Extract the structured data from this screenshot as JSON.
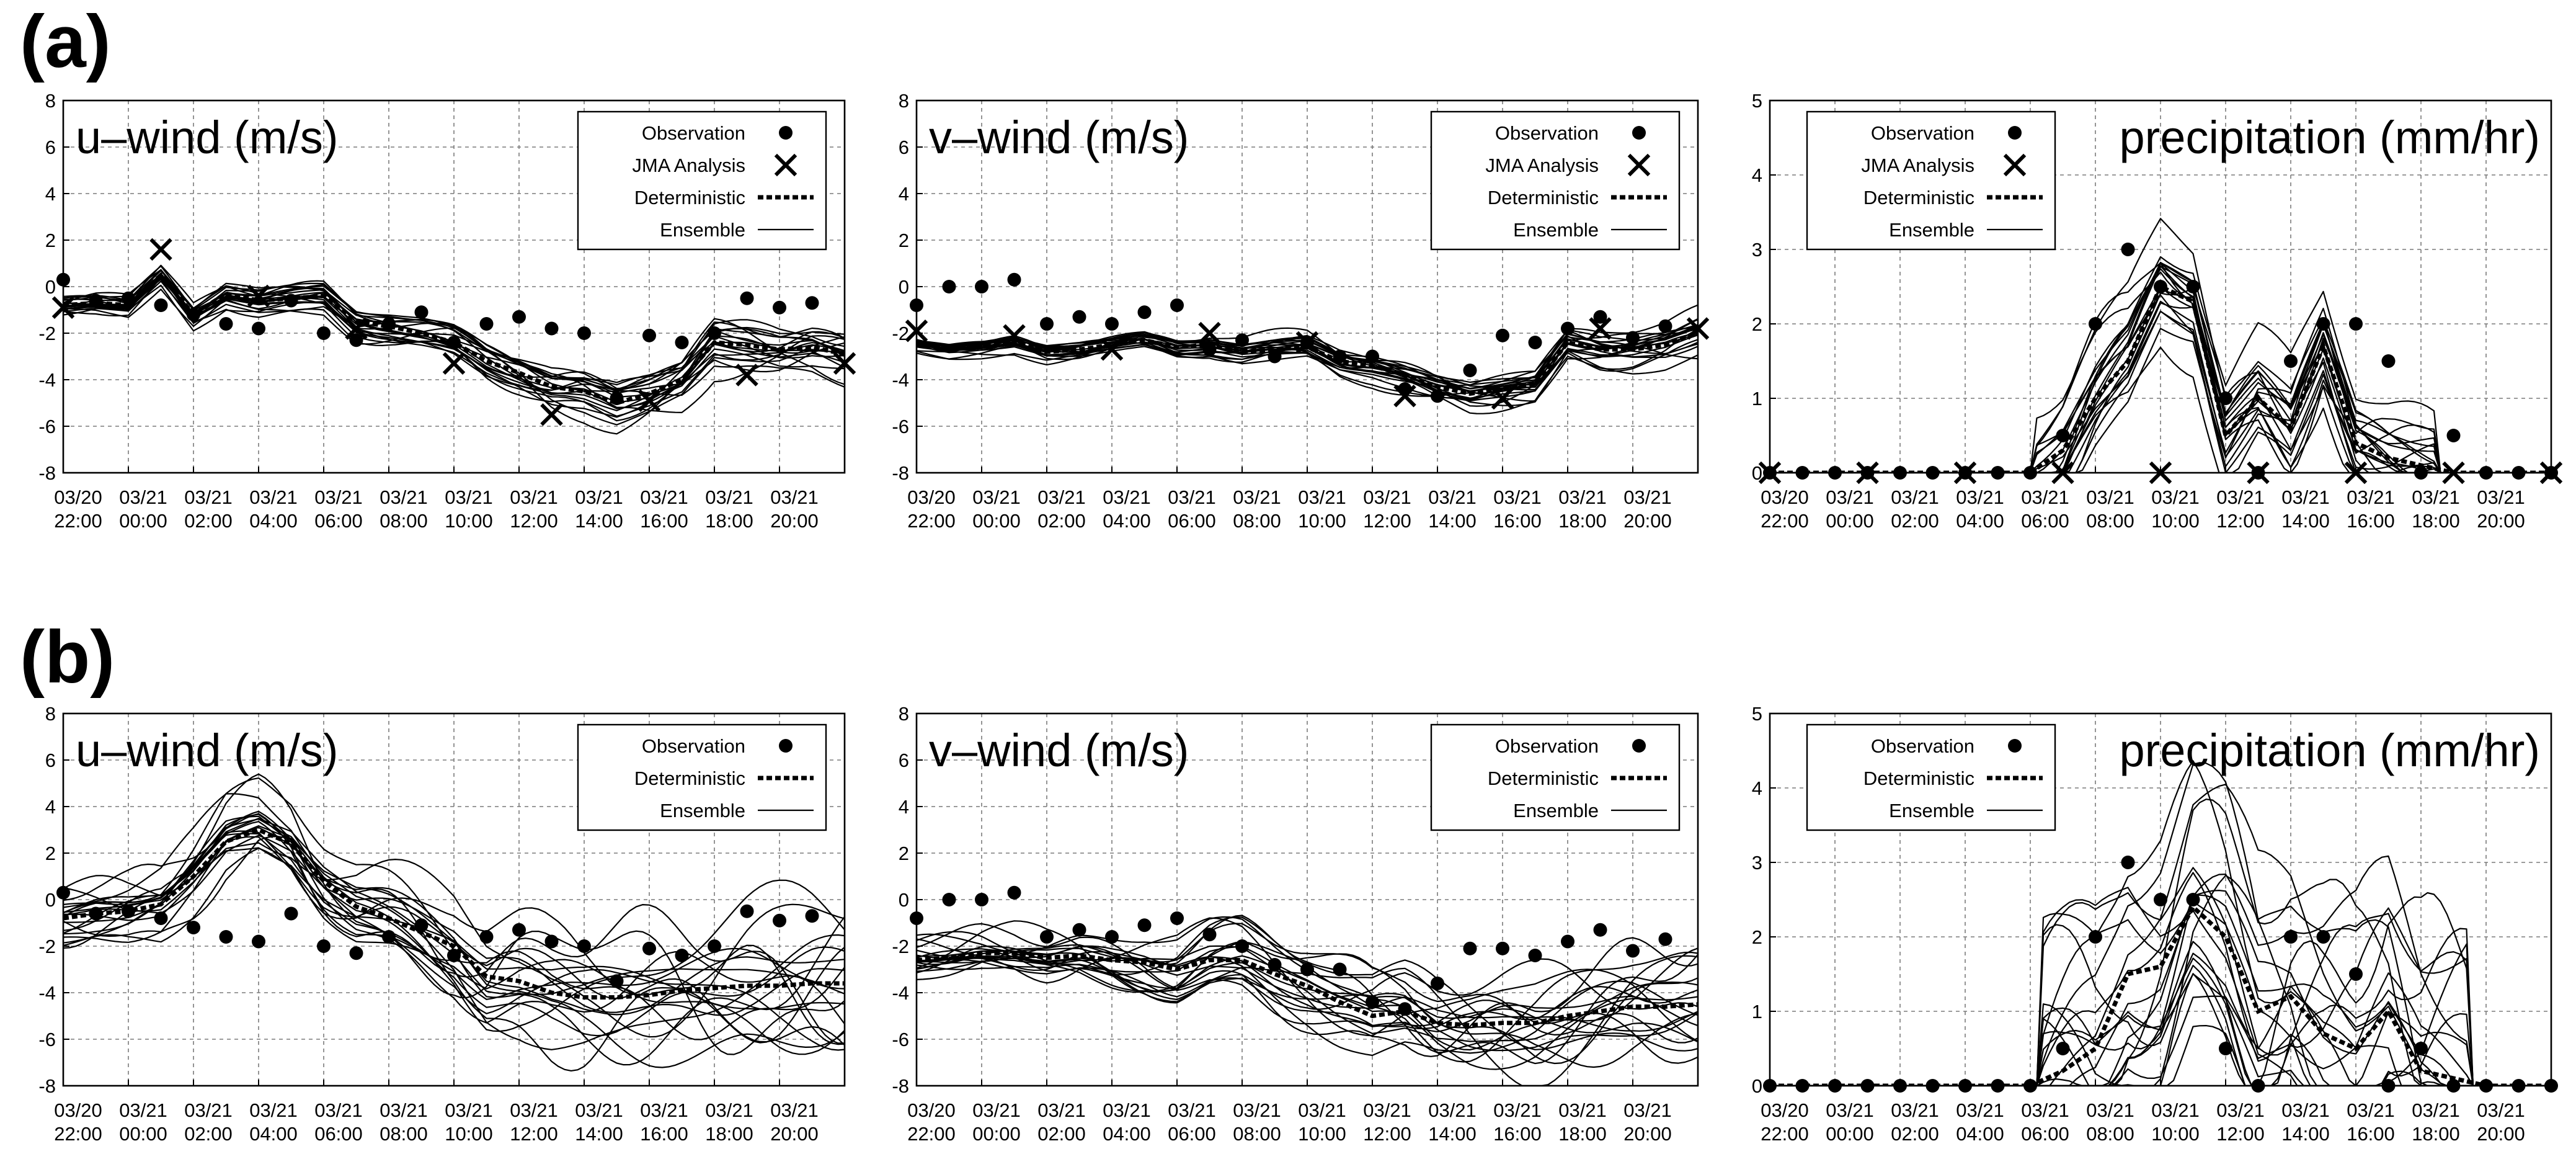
{
  "figure": {
    "rows": [
      {
        "label": "(a)"
      },
      {
        "label": "(b)"
      }
    ]
  },
  "legend": {
    "observation": "Observation",
    "jma": "JMA Analysis",
    "deterministic": "Deterministic",
    "ensemble": "Ensemble"
  },
  "chart_data": [
    {
      "id": "a-u",
      "type": "line",
      "row": "(a)",
      "title": "u–wind (m/s)",
      "ylim": [
        -8,
        8
      ],
      "yticks": [
        -8,
        -6,
        -4,
        -2,
        0,
        2,
        4,
        6,
        8
      ],
      "xlim": [
        -2,
        22
      ],
      "grid": true,
      "has_jma": true,
      "ensemble_spread": 0.6,
      "xtick_labels": [
        [
          "03/20",
          "22:00"
        ],
        [
          "03/21",
          "00:00"
        ],
        [
          "03/21",
          "02:00"
        ],
        [
          "03/21",
          "04:00"
        ],
        [
          "03/21",
          "06:00"
        ],
        [
          "03/21",
          "08:00"
        ],
        [
          "03/21",
          "10:00"
        ],
        [
          "03/21",
          "12:00"
        ],
        [
          "03/21",
          "14:00"
        ],
        [
          "03/21",
          "16:00"
        ],
        [
          "03/21",
          "18:00"
        ],
        [
          "03/21",
          "20:00"
        ]
      ],
      "observation": {
        "x": [
          -2,
          -1,
          0,
          1,
          2,
          3,
          4,
          5,
          6,
          7,
          8,
          9,
          10,
          11,
          12,
          13,
          14,
          15,
          16,
          17,
          18,
          19,
          20,
          21
        ],
        "y": [
          0.3,
          -0.6,
          -0.5,
          -0.8,
          -1.2,
          -1.6,
          -1.8,
          -0.6,
          -2.0,
          -2.3,
          -1.6,
          -1.1,
          -2.4,
          -1.6,
          -1.3,
          -1.8,
          -2.0,
          -4.8,
          -2.1,
          -2.4,
          -2.0,
          -0.5,
          -0.9,
          -0.7
        ]
      },
      "jma": {
        "x": [
          -2,
          1,
          4,
          7,
          10,
          13,
          16,
          19,
          22
        ],
        "y": [
          -0.9,
          1.6,
          -0.4,
          -1.8,
          -3.3,
          -5.5,
          -4.9,
          -3.8,
          -3.3
        ]
      },
      "deterministic": {
        "x": [
          -2,
          -1,
          0,
          1,
          2,
          3,
          4,
          5,
          6,
          7,
          8,
          9,
          10,
          11,
          12,
          13,
          14,
          15,
          16,
          17,
          18,
          19,
          20,
          21,
          22
        ],
        "y": [
          -0.8,
          -0.7,
          -0.8,
          0.5,
          -1.2,
          -0.3,
          -0.6,
          -0.5,
          -0.4,
          -1.5,
          -1.7,
          -2.0,
          -2.4,
          -3.2,
          -3.7,
          -4.3,
          -4.5,
          -5.0,
          -4.6,
          -4.0,
          -2.4,
          -2.5,
          -2.7,
          -2.6,
          -2.9
        ]
      }
    },
    {
      "id": "a-v",
      "type": "line",
      "row": "(a)",
      "title": "v–wind (m/s)",
      "ylim": [
        -8,
        8
      ],
      "yticks": [
        -8,
        -6,
        -4,
        -2,
        0,
        2,
        4,
        6,
        8
      ],
      "xlim": [
        -2,
        22
      ],
      "grid": true,
      "has_jma": true,
      "ensemble_spread": 0.4,
      "xtick_labels": [
        [
          "03/20",
          "22:00"
        ],
        [
          "03/21",
          "00:00"
        ],
        [
          "03/21",
          "02:00"
        ],
        [
          "03/21",
          "04:00"
        ],
        [
          "03/21",
          "06:00"
        ],
        [
          "03/21",
          "08:00"
        ],
        [
          "03/21",
          "10:00"
        ],
        [
          "03/21",
          "12:00"
        ],
        [
          "03/21",
          "14:00"
        ],
        [
          "03/21",
          "16:00"
        ],
        [
          "03/21",
          "18:00"
        ],
        [
          "03/21",
          "20:00"
        ]
      ],
      "observation": {
        "x": [
          -2,
          -1,
          0,
          1,
          2,
          3,
          4,
          5,
          6,
          7,
          8,
          9,
          10,
          11,
          12,
          13,
          14,
          15,
          16,
          17,
          18,
          19,
          20,
          21
        ],
        "y": [
          -0.8,
          0.0,
          0.0,
          0.3,
          -1.6,
          -1.3,
          -1.6,
          -1.1,
          -0.8,
          -2.7,
          -2.3,
          -3.0,
          -2.4,
          -3.0,
          -3.0,
          -4.4,
          -4.7,
          -3.6,
          -2.1,
          -2.4,
          -1.8,
          -1.3,
          -2.2,
          -1.7
        ]
      },
      "jma": {
        "x": [
          -2,
          1,
          4,
          7,
          10,
          13,
          16,
          19,
          22
        ],
        "y": [
          -1.9,
          -2.1,
          -2.7,
          -2.0,
          -2.4,
          -4.7,
          -4.8,
          -1.8,
          -1.8
        ]
      },
      "deterministic": {
        "x": [
          -2,
          -1,
          0,
          1,
          2,
          3,
          4,
          5,
          6,
          7,
          8,
          9,
          10,
          11,
          12,
          13,
          14,
          15,
          16,
          17,
          18,
          19,
          20,
          21,
          22
        ],
        "y": [
          -2.5,
          -2.7,
          -2.6,
          -2.4,
          -2.8,
          -2.7,
          -2.5,
          -2.3,
          -2.6,
          -2.5,
          -2.8,
          -2.7,
          -2.6,
          -3.2,
          -3.4,
          -3.8,
          -4.3,
          -4.6,
          -4.4,
          -4.2,
          -2.4,
          -2.7,
          -2.7,
          -2.5,
          -2.0
        ]
      }
    },
    {
      "id": "a-p",
      "type": "line",
      "row": "(a)",
      "title": "precipitation (mm/hr)",
      "ylim": [
        0,
        5
      ],
      "yticks": [
        0,
        1,
        2,
        3,
        4,
        5
      ],
      "xlim": [
        -2,
        22
      ],
      "grid": true,
      "has_jma": true,
      "ensemble_spread": 0.5,
      "xtick_labels": [
        [
          "03/20",
          "22:00"
        ],
        [
          "03/21",
          "00:00"
        ],
        [
          "03/21",
          "02:00"
        ],
        [
          "03/21",
          "04:00"
        ],
        [
          "03/21",
          "06:00"
        ],
        [
          "03/21",
          "08:00"
        ],
        [
          "03/21",
          "10:00"
        ],
        [
          "03/21",
          "12:00"
        ],
        [
          "03/21",
          "14:00"
        ],
        [
          "03/21",
          "16:00"
        ],
        [
          "03/21",
          "18:00"
        ],
        [
          "03/21",
          "20:00"
        ]
      ],
      "observation": {
        "x": [
          -2,
          -1,
          0,
          1,
          2,
          3,
          4,
          5,
          6,
          7,
          8,
          9,
          10,
          11,
          12,
          13,
          14,
          15,
          16,
          17,
          18,
          19,
          20,
          21,
          22
        ],
        "y": [
          0,
          0,
          0,
          0,
          0,
          0,
          0,
          0,
          0,
          0.5,
          2.0,
          3.0,
          2.5,
          2.5,
          1.0,
          0.0,
          1.5,
          2.0,
          2.0,
          1.5,
          0,
          0.5,
          0,
          0,
          0
        ]
      },
      "jma": {
        "x": [
          -2,
          1,
          4,
          7,
          10,
          13,
          16,
          19,
          22
        ],
        "y": [
          0,
          0,
          0,
          0,
          0,
          0,
          0,
          0,
          0
        ]
      },
      "deterministic": {
        "x": [
          -2,
          -1,
          0,
          1,
          2,
          3,
          4,
          5,
          6,
          7,
          8,
          9,
          10,
          11,
          12,
          13,
          14,
          15,
          16,
          17,
          18,
          19,
          20,
          21,
          22
        ],
        "y": [
          0,
          0,
          0,
          0,
          0,
          0,
          0,
          0,
          0,
          0.3,
          1.0,
          1.5,
          2.5,
          2.3,
          0.5,
          1.0,
          0.6,
          1.7,
          0.4,
          0.2,
          0.1,
          0,
          0,
          0,
          0
        ]
      }
    },
    {
      "id": "b-u",
      "type": "line",
      "row": "(b)",
      "title": "u–wind (m/s)",
      "ylim": [
        -8,
        8
      ],
      "yticks": [
        -8,
        -6,
        -4,
        -2,
        0,
        2,
        4,
        6,
        8
      ],
      "xlim": [
        -2,
        22
      ],
      "grid": true,
      "has_jma": false,
      "ensemble_spread": 1.6,
      "xtick_labels": [
        [
          "03/20",
          "22:00"
        ],
        [
          "03/21",
          "00:00"
        ],
        [
          "03/21",
          "02:00"
        ],
        [
          "03/21",
          "04:00"
        ],
        [
          "03/21",
          "06:00"
        ],
        [
          "03/21",
          "08:00"
        ],
        [
          "03/21",
          "10:00"
        ],
        [
          "03/21",
          "12:00"
        ],
        [
          "03/21",
          "14:00"
        ],
        [
          "03/21",
          "16:00"
        ],
        [
          "03/21",
          "18:00"
        ],
        [
          "03/21",
          "20:00"
        ]
      ],
      "observation": {
        "x": [
          -2,
          -1,
          0,
          1,
          2,
          3,
          4,
          5,
          6,
          7,
          8,
          9,
          10,
          11,
          12,
          13,
          14,
          15,
          16,
          17,
          18,
          19,
          20,
          21
        ],
        "y": [
          0.3,
          -0.6,
          -0.5,
          -0.8,
          -1.2,
          -1.6,
          -1.8,
          -0.6,
          -2.0,
          -2.3,
          -1.6,
          -1.1,
          -2.4,
          -1.6,
          -1.3,
          -1.8,
          -2.0,
          -3.5,
          -2.1,
          -2.4,
          -2.0,
          -0.5,
          -0.9,
          -0.7
        ]
      },
      "deterministic": {
        "x": [
          -2,
          -1,
          0,
          1,
          2,
          3,
          4,
          5,
          6,
          7,
          8,
          9,
          10,
          11,
          12,
          13,
          14,
          15,
          16,
          17,
          18,
          19,
          20,
          21,
          22
        ],
        "y": [
          -0.8,
          -0.6,
          -0.5,
          -0.2,
          1.0,
          2.5,
          3.0,
          2.4,
          0.8,
          -0.3,
          -0.8,
          -1.4,
          -2.0,
          -3.3,
          -3.5,
          -4.0,
          -4.2,
          -4.2,
          -4.1,
          -3.9,
          -3.8,
          -3.7,
          -3.7,
          -3.6,
          -3.6
        ]
      }
    },
    {
      "id": "b-v",
      "type": "line",
      "row": "(b)",
      "title": "v–wind (m/s)",
      "ylim": [
        -8,
        8
      ],
      "yticks": [
        -8,
        -6,
        -4,
        -2,
        0,
        2,
        4,
        6,
        8
      ],
      "xlim": [
        -2,
        22
      ],
      "grid": true,
      "has_jma": false,
      "ensemble_spread": 1.2,
      "xtick_labels": [
        [
          "03/20",
          "22:00"
        ],
        [
          "03/21",
          "00:00"
        ],
        [
          "03/21",
          "02:00"
        ],
        [
          "03/21",
          "04:00"
        ],
        [
          "03/21",
          "06:00"
        ],
        [
          "03/21",
          "08:00"
        ],
        [
          "03/21",
          "10:00"
        ],
        [
          "03/21",
          "12:00"
        ],
        [
          "03/21",
          "14:00"
        ],
        [
          "03/21",
          "16:00"
        ],
        [
          "03/21",
          "18:00"
        ],
        [
          "03/21",
          "20:00"
        ]
      ],
      "observation": {
        "x": [
          -2,
          -1,
          0,
          1,
          2,
          3,
          4,
          5,
          6,
          7,
          8,
          9,
          10,
          11,
          12,
          13,
          14,
          15,
          16,
          17,
          18,
          19,
          20,
          21
        ],
        "y": [
          -0.8,
          0.0,
          0.0,
          0.3,
          -1.6,
          -1.3,
          -1.6,
          -1.1,
          -0.8,
          -1.5,
          -2.0,
          -2.8,
          -3.0,
          -3.0,
          -4.4,
          -4.7,
          -3.6,
          -2.1,
          -2.1,
          -2.4,
          -1.8,
          -1.3,
          -2.2,
          -1.7
        ]
      },
      "deterministic": {
        "x": [
          -2,
          -1,
          0,
          1,
          2,
          3,
          4,
          5,
          6,
          7,
          8,
          9,
          10,
          11,
          12,
          13,
          14,
          15,
          16,
          17,
          18,
          19,
          20,
          21,
          22
        ],
        "y": [
          -2.6,
          -2.5,
          -2.3,
          -2.3,
          -2.5,
          -2.4,
          -2.6,
          -2.7,
          -3.0,
          -2.6,
          -2.6,
          -3.2,
          -3.7,
          -4.4,
          -5.0,
          -4.8,
          -5.3,
          -5.4,
          -5.3,
          -5.3,
          -5.0,
          -4.8,
          -4.6,
          -4.6,
          -4.5
        ]
      }
    },
    {
      "id": "b-p",
      "type": "line",
      "row": "(b)",
      "title": "precipitation (mm/hr)",
      "ylim": [
        0,
        5
      ],
      "yticks": [
        0,
        1,
        2,
        3,
        4,
        5
      ],
      "xlim": [
        -2,
        22
      ],
      "grid": true,
      "has_jma": false,
      "ensemble_spread": 1.4,
      "xtick_labels": [
        [
          "03/20",
          "22:00"
        ],
        [
          "03/21",
          "00:00"
        ],
        [
          "03/21",
          "02:00"
        ],
        [
          "03/21",
          "04:00"
        ],
        [
          "03/21",
          "06:00"
        ],
        [
          "03/21",
          "08:00"
        ],
        [
          "03/21",
          "10:00"
        ],
        [
          "03/21",
          "12:00"
        ],
        [
          "03/21",
          "14:00"
        ],
        [
          "03/21",
          "16:00"
        ],
        [
          "03/21",
          "18:00"
        ],
        [
          "03/21",
          "20:00"
        ]
      ],
      "observation": {
        "x": [
          -2,
          -1,
          0,
          1,
          2,
          3,
          4,
          5,
          6,
          7,
          8,
          9,
          10,
          11,
          12,
          13,
          14,
          15,
          16,
          17,
          18,
          19,
          20,
          21,
          22
        ],
        "y": [
          0,
          0,
          0,
          0,
          0,
          0,
          0,
          0,
          0,
          0.5,
          2.0,
          3.0,
          2.5,
          2.5,
          0.5,
          0.0,
          2.0,
          2.0,
          1.5,
          0,
          0.5,
          0,
          0,
          0,
          0
        ]
      },
      "deterministic": {
        "x": [
          -2,
          -1,
          0,
          1,
          2,
          3,
          4,
          5,
          6,
          7,
          8,
          9,
          10,
          11,
          12,
          13,
          14,
          15,
          16,
          17,
          18,
          19,
          20,
          21,
          22
        ],
        "y": [
          0,
          0,
          0,
          0,
          0,
          0,
          0,
          0,
          0,
          0.2,
          0.5,
          1.5,
          1.6,
          2.4,
          2.0,
          1.0,
          1.2,
          0.7,
          0.5,
          1.0,
          0.2,
          0.1,
          0,
          0,
          0
        ]
      }
    }
  ]
}
